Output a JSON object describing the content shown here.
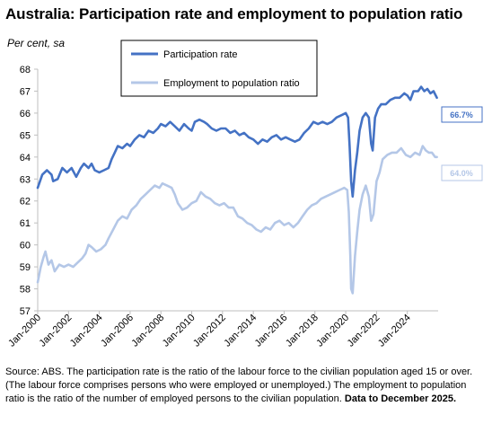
{
  "chart_data": {
    "type": "line",
    "title": "Australia: Participation rate and employment to population ratio",
    "ylabel": "Per cent, sa",
    "ylim": [
      57,
      68
    ],
    "yticks": [
      57,
      58,
      59,
      60,
      61,
      62,
      63,
      64,
      65,
      66,
      67,
      68
    ],
    "xlim": [
      2000.0,
      2026.0
    ],
    "xticks": [
      {
        "x": 2000,
        "label": "Jan-2000"
      },
      {
        "x": 2002,
        "label": "Jan-2002"
      },
      {
        "x": 2004,
        "label": "Jan-2004"
      },
      {
        "x": 2006,
        "label": "Jan-2006"
      },
      {
        "x": 2008,
        "label": "Jan-2008"
      },
      {
        "x": 2010,
        "label": "Jan-2010"
      },
      {
        "x": 2012,
        "label": "Jan-2012"
      },
      {
        "x": 2014,
        "label": "Jan-2014"
      },
      {
        "x": 2016,
        "label": "Jan-2016"
      },
      {
        "x": 2018,
        "label": "Jan-2018"
      },
      {
        "x": 2020,
        "label": "Jan-2020"
      },
      {
        "x": 2022,
        "label": "Jan-2022"
      },
      {
        "x": 2024,
        "label": "Jan-2024"
      }
    ],
    "grid": false,
    "legend_position": "top-center",
    "series": [
      {
        "name": "Participation rate",
        "color": "#4472C4",
        "end_label": "66.7%",
        "points": [
          [
            2000.0,
            62.6
          ],
          [
            2000.3,
            63.2
          ],
          [
            2000.6,
            63.4
          ],
          [
            2000.9,
            63.2
          ],
          [
            2001.0,
            62.9
          ],
          [
            2001.3,
            63.0
          ],
          [
            2001.6,
            63.5
          ],
          [
            2001.9,
            63.3
          ],
          [
            2002.2,
            63.5
          ],
          [
            2002.5,
            63.1
          ],
          [
            2002.8,
            63.5
          ],
          [
            2003.0,
            63.7
          ],
          [
            2003.3,
            63.5
          ],
          [
            2003.5,
            63.7
          ],
          [
            2003.7,
            63.4
          ],
          [
            2004.0,
            63.3
          ],
          [
            2004.3,
            63.4
          ],
          [
            2004.6,
            63.5
          ],
          [
            2004.8,
            63.9
          ],
          [
            2005.0,
            64.2
          ],
          [
            2005.2,
            64.5
          ],
          [
            2005.5,
            64.4
          ],
          [
            2005.8,
            64.6
          ],
          [
            2006.0,
            64.5
          ],
          [
            2006.3,
            64.8
          ],
          [
            2006.6,
            65.0
          ],
          [
            2006.9,
            64.9
          ],
          [
            2007.2,
            65.2
          ],
          [
            2007.5,
            65.1
          ],
          [
            2007.8,
            65.3
          ],
          [
            2008.0,
            65.5
          ],
          [
            2008.3,
            65.4
          ],
          [
            2008.6,
            65.6
          ],
          [
            2008.9,
            65.4
          ],
          [
            2009.2,
            65.2
          ],
          [
            2009.5,
            65.5
          ],
          [
            2009.8,
            65.3
          ],
          [
            2010.0,
            65.2
          ],
          [
            2010.2,
            65.6
          ],
          [
            2010.5,
            65.7
          ],
          [
            2010.8,
            65.6
          ],
          [
            2011.0,
            65.5
          ],
          [
            2011.3,
            65.3
          ],
          [
            2011.6,
            65.2
          ],
          [
            2011.9,
            65.3
          ],
          [
            2012.2,
            65.3
          ],
          [
            2012.5,
            65.1
          ],
          [
            2012.8,
            65.2
          ],
          [
            2013.1,
            65.0
          ],
          [
            2013.4,
            65.1
          ],
          [
            2013.7,
            64.9
          ],
          [
            2014.0,
            64.8
          ],
          [
            2014.3,
            64.6
          ],
          [
            2014.6,
            64.8
          ],
          [
            2014.9,
            64.7
          ],
          [
            2015.2,
            64.9
          ],
          [
            2015.5,
            65.0
          ],
          [
            2015.8,
            64.8
          ],
          [
            2016.1,
            64.9
          ],
          [
            2016.4,
            64.8
          ],
          [
            2016.7,
            64.7
          ],
          [
            2017.0,
            64.8
          ],
          [
            2017.3,
            65.1
          ],
          [
            2017.6,
            65.3
          ],
          [
            2017.9,
            65.6
          ],
          [
            2018.2,
            65.5
          ],
          [
            2018.5,
            65.6
          ],
          [
            2018.8,
            65.5
          ],
          [
            2019.1,
            65.6
          ],
          [
            2019.4,
            65.8
          ],
          [
            2019.7,
            65.9
          ],
          [
            2020.0,
            66.0
          ],
          [
            2020.15,
            65.8
          ],
          [
            2020.25,
            64.5
          ],
          [
            2020.35,
            62.9
          ],
          [
            2020.45,
            62.2
          ],
          [
            2020.6,
            63.4
          ],
          [
            2020.75,
            64.2
          ],
          [
            2020.9,
            65.2
          ],
          [
            2021.1,
            65.8
          ],
          [
            2021.3,
            66.0
          ],
          [
            2021.5,
            65.8
          ],
          [
            2021.65,
            64.6
          ],
          [
            2021.75,
            64.3
          ],
          [
            2021.9,
            65.8
          ],
          [
            2022.1,
            66.2
          ],
          [
            2022.3,
            66.4
          ],
          [
            2022.6,
            66.4
          ],
          [
            2022.9,
            66.6
          ],
          [
            2023.2,
            66.7
          ],
          [
            2023.5,
            66.7
          ],
          [
            2023.8,
            66.9
          ],
          [
            2024.0,
            66.8
          ],
          [
            2024.2,
            66.6
          ],
          [
            2024.4,
            67.0
          ],
          [
            2024.7,
            67.0
          ],
          [
            2024.9,
            67.2
          ],
          [
            2025.1,
            67.0
          ],
          [
            2025.3,
            67.1
          ],
          [
            2025.5,
            66.9
          ],
          [
            2025.7,
            67.0
          ],
          [
            2025.92,
            66.7
          ]
        ]
      },
      {
        "name": "Employment to population ratio",
        "color": "#B4C7E7",
        "end_label": "64.0%",
        "points": [
          [
            2000.0,
            58.3
          ],
          [
            2000.2,
            59.0
          ],
          [
            2000.4,
            59.5
          ],
          [
            2000.5,
            59.7
          ],
          [
            2000.7,
            59.1
          ],
          [
            2000.9,
            59.3
          ],
          [
            2001.1,
            58.8
          ],
          [
            2001.4,
            59.1
          ],
          [
            2001.7,
            59.0
          ],
          [
            2002.0,
            59.1
          ],
          [
            2002.3,
            59.0
          ],
          [
            2002.6,
            59.2
          ],
          [
            2002.9,
            59.4
          ],
          [
            2003.1,
            59.6
          ],
          [
            2003.3,
            60.0
          ],
          [
            2003.5,
            59.9
          ],
          [
            2003.8,
            59.7
          ],
          [
            2004.1,
            59.8
          ],
          [
            2004.4,
            60.0
          ],
          [
            2004.6,
            60.3
          ],
          [
            2004.9,
            60.7
          ],
          [
            2005.2,
            61.1
          ],
          [
            2005.5,
            61.3
          ],
          [
            2005.8,
            61.2
          ],
          [
            2006.1,
            61.6
          ],
          [
            2006.4,
            61.8
          ],
          [
            2006.7,
            62.1
          ],
          [
            2007.0,
            62.3
          ],
          [
            2007.3,
            62.5
          ],
          [
            2007.6,
            62.7
          ],
          [
            2007.9,
            62.6
          ],
          [
            2008.1,
            62.8
          ],
          [
            2008.4,
            62.7
          ],
          [
            2008.7,
            62.6
          ],
          [
            2008.9,
            62.3
          ],
          [
            2009.1,
            61.9
          ],
          [
            2009.4,
            61.6
          ],
          [
            2009.7,
            61.7
          ],
          [
            2010.0,
            61.9
          ],
          [
            2010.3,
            62.0
          ],
          [
            2010.6,
            62.4
          ],
          [
            2010.9,
            62.2
          ],
          [
            2011.2,
            62.1
          ],
          [
            2011.5,
            61.9
          ],
          [
            2011.8,
            61.8
          ],
          [
            2012.1,
            61.9
          ],
          [
            2012.4,
            61.7
          ],
          [
            2012.7,
            61.7
          ],
          [
            2013.0,
            61.3
          ],
          [
            2013.3,
            61.2
          ],
          [
            2013.6,
            61.0
          ],
          [
            2013.9,
            60.9
          ],
          [
            2014.2,
            60.7
          ],
          [
            2014.5,
            60.6
          ],
          [
            2014.8,
            60.8
          ],
          [
            2015.1,
            60.7
          ],
          [
            2015.4,
            61.0
          ],
          [
            2015.7,
            61.1
          ],
          [
            2016.0,
            60.9
          ],
          [
            2016.3,
            61.0
          ],
          [
            2016.6,
            60.8
          ],
          [
            2016.9,
            61.0
          ],
          [
            2017.2,
            61.3
          ],
          [
            2017.5,
            61.6
          ],
          [
            2017.8,
            61.8
          ],
          [
            2018.1,
            61.9
          ],
          [
            2018.4,
            62.1
          ],
          [
            2018.7,
            62.2
          ],
          [
            2019.0,
            62.3
          ],
          [
            2019.3,
            62.4
          ],
          [
            2019.6,
            62.5
          ],
          [
            2019.9,
            62.6
          ],
          [
            2020.1,
            62.5
          ],
          [
            2020.2,
            61.5
          ],
          [
            2020.3,
            59.5
          ],
          [
            2020.35,
            58.0
          ],
          [
            2020.45,
            57.8
          ],
          [
            2020.6,
            59.5
          ],
          [
            2020.75,
            60.6
          ],
          [
            2020.9,
            61.6
          ],
          [
            2021.1,
            62.3
          ],
          [
            2021.3,
            62.7
          ],
          [
            2021.5,
            62.2
          ],
          [
            2021.65,
            61.1
          ],
          [
            2021.8,
            61.4
          ],
          [
            2022.0,
            62.9
          ],
          [
            2022.2,
            63.3
          ],
          [
            2022.4,
            63.9
          ],
          [
            2022.7,
            64.1
          ],
          [
            2023.0,
            64.2
          ],
          [
            2023.3,
            64.2
          ],
          [
            2023.6,
            64.4
          ],
          [
            2023.9,
            64.1
          ],
          [
            2024.2,
            64.0
          ],
          [
            2024.5,
            64.2
          ],
          [
            2024.8,
            64.1
          ],
          [
            2025.0,
            64.5
          ],
          [
            2025.2,
            64.3
          ],
          [
            2025.4,
            64.2
          ],
          [
            2025.6,
            64.2
          ],
          [
            2025.8,
            64.0
          ],
          [
            2025.92,
            64.0
          ]
        ]
      }
    ]
  },
  "source": {
    "text": "Source: ABS.  The participation rate is the ratio of the labour force to the civilian population aged 15 or over.  (The labour force comprises persons who were employed or unemployed.)  The employment to population ratio is the ratio of the number of employed persons to the civilian population.",
    "data_note": "Data to December 2025."
  }
}
